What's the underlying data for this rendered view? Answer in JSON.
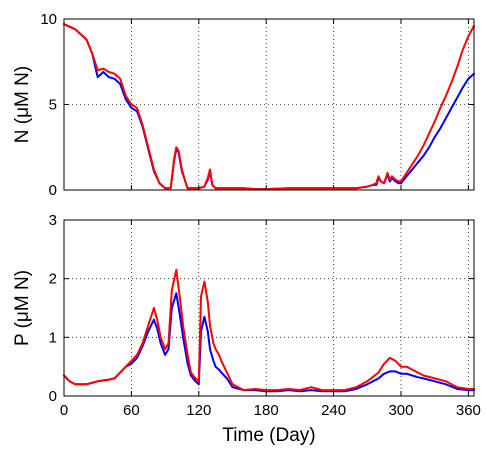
{
  "chart_data": [
    {
      "type": "line",
      "ylabel": "N (μM N)",
      "xlim": [
        0,
        365
      ],
      "ylim": [
        0,
        10
      ],
      "xticks": [
        "0",
        "60",
        "120",
        "180",
        "240",
        "300",
        "360"
      ],
      "yticks": [
        "0",
        "5",
        "10"
      ],
      "xticklabels_visible": false,
      "grid": true,
      "series": [
        {
          "color": "#ff0000",
          "x": [
            0,
            10,
            20,
            25,
            30,
            35,
            40,
            45,
            50,
            55,
            60,
            65,
            70,
            75,
            80,
            85,
            90,
            95,
            98,
            100,
            102,
            105,
            108,
            110,
            115,
            120,
            125,
            128,
            130,
            132,
            135,
            140,
            150,
            160,
            170,
            180,
            200,
            220,
            240,
            260,
            270,
            275,
            278,
            280,
            282,
            285,
            288,
            290,
            292,
            295,
            298,
            300,
            305,
            310,
            315,
            320,
            325,
            330,
            335,
            340,
            345,
            350,
            355,
            360,
            365
          ],
          "values": [
            9.7,
            9.4,
            8.8,
            8.0,
            7.0,
            7.1,
            6.9,
            6.8,
            6.5,
            5.5,
            5.0,
            4.8,
            3.8,
            2.5,
            1.2,
            0.4,
            0.1,
            0.1,
            1.8,
            2.5,
            2.3,
            1.2,
            0.5,
            0.1,
            0.1,
            0.1,
            0.2,
            0.7,
            1.2,
            0.3,
            0.1,
            0.1,
            0.1,
            0.1,
            0.05,
            0.05,
            0.1,
            0.1,
            0.1,
            0.1,
            0.2,
            0.3,
            0.4,
            0.8,
            0.5,
            0.4,
            1.0,
            0.6,
            0.8,
            0.6,
            0.5,
            0.5,
            1.0,
            1.5,
            2.0,
            2.6,
            3.3,
            4.0,
            4.8,
            5.5,
            6.3,
            7.2,
            8.2,
            9.0,
            9.6
          ]
        },
        {
          "color": "#0000ff",
          "x": [
            0,
            10,
            20,
            25,
            30,
            35,
            40,
            45,
            50,
            55,
            60,
            65,
            70,
            75,
            80,
            85,
            90,
            95,
            98,
            100,
            102,
            105,
            108,
            110,
            115,
            120,
            125,
            128,
            130,
            132,
            135,
            140,
            150,
            160,
            170,
            180,
            200,
            220,
            240,
            260,
            270,
            275,
            278,
            280,
            282,
            285,
            288,
            290,
            292,
            295,
            298,
            300,
            305,
            310,
            315,
            320,
            325,
            330,
            335,
            340,
            345,
            350,
            355,
            360,
            365
          ],
          "values": [
            9.7,
            9.4,
            8.8,
            8.0,
            6.6,
            6.9,
            6.6,
            6.5,
            6.2,
            5.3,
            4.8,
            4.6,
            3.7,
            2.4,
            1.1,
            0.4,
            0.1,
            0.1,
            1.7,
            2.4,
            2.2,
            1.1,
            0.5,
            0.1,
            0.1,
            0.1,
            0.2,
            0.6,
            1.1,
            0.3,
            0.1,
            0.1,
            0.1,
            0.1,
            0.05,
            0.05,
            0.1,
            0.1,
            0.1,
            0.1,
            0.2,
            0.3,
            0.3,
            0.7,
            0.5,
            0.4,
            0.9,
            0.5,
            0.7,
            0.5,
            0.4,
            0.4,
            0.8,
            1.2,
            1.6,
            2.0,
            2.5,
            3.1,
            3.6,
            4.2,
            4.8,
            5.4,
            6.0,
            6.5,
            6.8
          ]
        }
      ]
    },
    {
      "type": "line",
      "xlabel": "Time (Day)",
      "ylabel": "P (μM N)",
      "xlim": [
        0,
        365
      ],
      "ylim": [
        0,
        3
      ],
      "xticks": [
        "0",
        "60",
        "120",
        "180",
        "240",
        "300",
        "360"
      ],
      "yticks": [
        "0",
        "1",
        "2",
        "3"
      ],
      "xticklabels_visible": true,
      "grid": true,
      "series": [
        {
          "color": "#ff0000",
          "x": [
            0,
            5,
            10,
            20,
            30,
            40,
            45,
            50,
            55,
            60,
            65,
            70,
            75,
            80,
            83,
            86,
            90,
            93,
            96,
            100,
            103,
            106,
            110,
            113,
            117,
            120,
            122,
            125,
            128,
            130,
            133,
            135,
            138,
            140,
            145,
            150,
            160,
            170,
            180,
            190,
            200,
            210,
            220,
            230,
            240,
            250,
            260,
            270,
            280,
            285,
            290,
            295,
            300,
            305,
            310,
            315,
            320,
            330,
            340,
            350,
            360,
            365
          ],
          "values": [
            0.35,
            0.25,
            0.2,
            0.2,
            0.25,
            0.28,
            0.3,
            0.4,
            0.5,
            0.6,
            0.7,
            0.9,
            1.2,
            1.5,
            1.3,
            1.0,
            0.8,
            0.9,
            1.8,
            2.15,
            1.7,
            1.2,
            0.7,
            0.4,
            0.3,
            0.25,
            1.7,
            1.95,
            1.6,
            1.2,
            0.9,
            0.8,
            0.7,
            0.6,
            0.4,
            0.2,
            0.1,
            0.12,
            0.1,
            0.1,
            0.12,
            0.1,
            0.15,
            0.1,
            0.1,
            0.1,
            0.15,
            0.25,
            0.4,
            0.55,
            0.65,
            0.6,
            0.5,
            0.5,
            0.45,
            0.4,
            0.35,
            0.3,
            0.25,
            0.15,
            0.12,
            0.12
          ]
        },
        {
          "color": "#0000ff",
          "x": [
            0,
            5,
            10,
            20,
            30,
            40,
            45,
            50,
            55,
            60,
            65,
            70,
            75,
            80,
            83,
            86,
            90,
            93,
            96,
            100,
            103,
            106,
            110,
            113,
            117,
            120,
            122,
            125,
            128,
            130,
            133,
            135,
            138,
            140,
            145,
            150,
            160,
            170,
            180,
            190,
            200,
            210,
            220,
            230,
            240,
            250,
            260,
            270,
            280,
            285,
            290,
            295,
            300,
            305,
            310,
            315,
            320,
            330,
            340,
            350,
            360,
            365
          ],
          "values": [
            0.35,
            0.25,
            0.2,
            0.2,
            0.25,
            0.28,
            0.3,
            0.4,
            0.5,
            0.55,
            0.65,
            0.85,
            1.1,
            1.3,
            1.15,
            0.9,
            0.7,
            0.8,
            1.5,
            1.75,
            1.4,
            1.0,
            0.55,
            0.35,
            0.25,
            0.2,
            1.1,
            1.35,
            1.1,
            0.8,
            0.6,
            0.5,
            0.45,
            0.4,
            0.3,
            0.15,
            0.1,
            0.1,
            0.08,
            0.08,
            0.1,
            0.08,
            0.1,
            0.08,
            0.08,
            0.08,
            0.12,
            0.2,
            0.3,
            0.38,
            0.42,
            0.42,
            0.38,
            0.38,
            0.35,
            0.32,
            0.3,
            0.25,
            0.2,
            0.12,
            0.1,
            0.1
          ]
        }
      ]
    }
  ]
}
